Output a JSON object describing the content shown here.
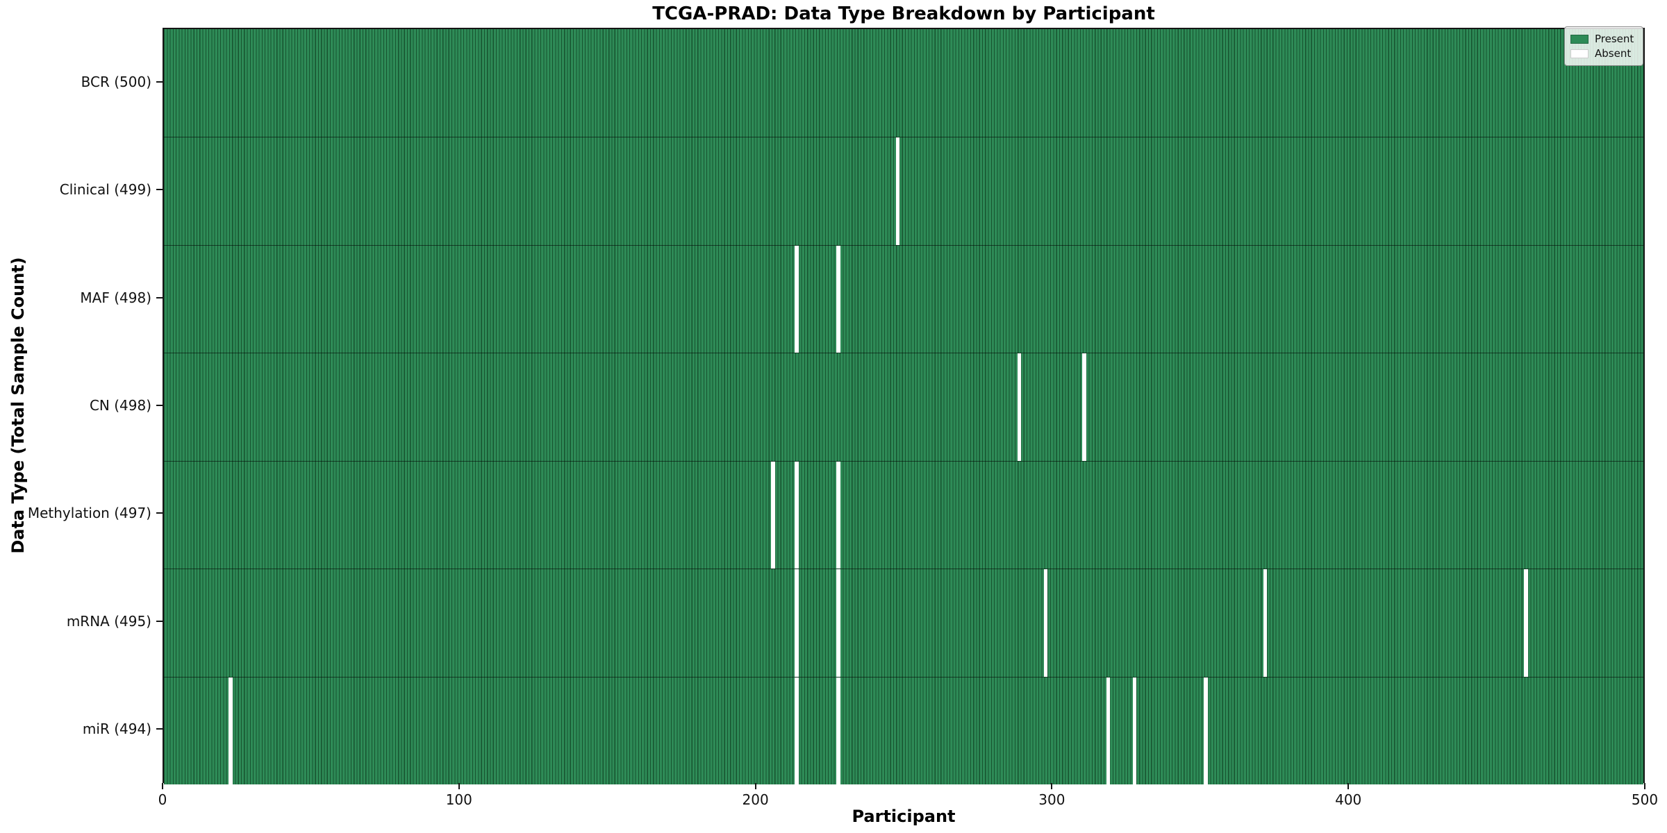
{
  "figure": {
    "title": "TCGA-PRAD: Data Type Breakdown by Participant"
  },
  "colors": {
    "present": "#2e8b57",
    "absent": "#ffffff",
    "bar_edge": "#17532f",
    "row_divider": "#1d3a2a",
    "axis_spine": "#151515"
  },
  "chart_data": {
    "type": "heatmap",
    "title": "TCGA-PRAD: Data Type Breakdown by Participant",
    "xlabel": "Participant",
    "ylabel": "Data Type (Total Sample Count)",
    "x_axis": {
      "min": 0,
      "max": 500,
      "ticks": [
        0,
        100,
        200,
        300,
        400,
        500
      ]
    },
    "grid": false,
    "legend_position": "upper-right",
    "legend": [
      {
        "label": "Present",
        "color": "#2e8b57"
      },
      {
        "label": "Absent",
        "color": "#ffffff"
      }
    ],
    "rows": [
      {
        "label": "BCR (500)",
        "data_type": "BCR",
        "total": 500,
        "absent_participants": []
      },
      {
        "label": "Clinical (499)",
        "data_type": "Clinical",
        "total": 499,
        "absent_participants": [
          247
        ]
      },
      {
        "label": "MAF (498)",
        "data_type": "MAF",
        "total": 498,
        "absent_participants": [
          213,
          227
        ]
      },
      {
        "label": "CN (498)",
        "data_type": "CN",
        "total": 498,
        "absent_participants": [
          288,
          310
        ]
      },
      {
        "label": "Methylation (497)",
        "data_type": "Methylation",
        "total": 497,
        "absent_participants": [
          205,
          213,
          227
        ]
      },
      {
        "label": "mRNA (495)",
        "data_type": "mRNA",
        "total": 495,
        "absent_participants": [
          213,
          227,
          297,
          371,
          459
        ]
      },
      {
        "label": "miR (494)",
        "data_type": "miR",
        "total": 494,
        "absent_participants": [
          22,
          213,
          227,
          318,
          327,
          351
        ]
      }
    ]
  }
}
